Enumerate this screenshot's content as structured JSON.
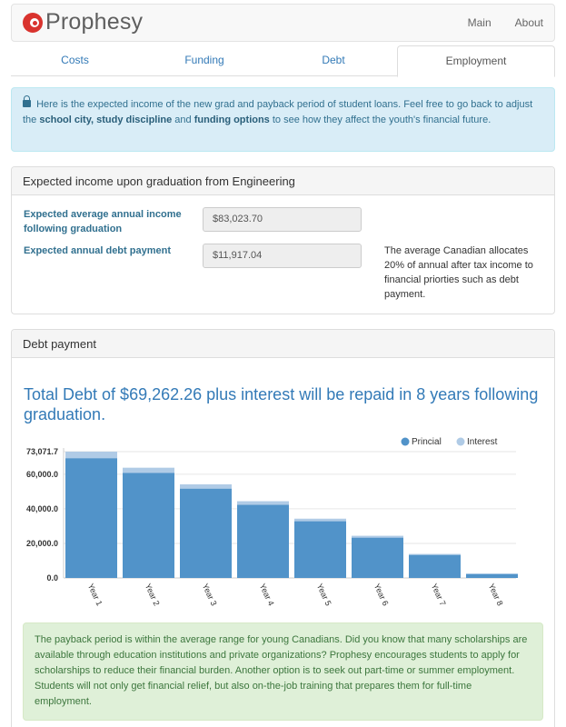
{
  "app": {
    "brand": "Prophesy",
    "nav": [
      "Main",
      "About"
    ]
  },
  "tabs": [
    "Costs",
    "Funding",
    "Debt",
    "Employment"
  ],
  "info": {
    "part1": "Here is the expected income of the new grad and payback period of student loans. Feel free to go back to adjust the ",
    "bold1": "school city, study discipline",
    "part2": " and ",
    "bold2": "funding options",
    "part3": " to see how they affect the youth's financial future."
  },
  "income_panel": {
    "heading": "Expected income upon graduation from Engineering",
    "income_label": "Expected average annual income following graduation",
    "income_value": "$83,023.70",
    "debt_label": "Expected annual debt payment",
    "debt_value": "$11,917.04",
    "aside": "The average Canadian allocates 20% of annual after tax income to financial priorties such as debt payment."
  },
  "debt_panel": {
    "heading": "Debt payment",
    "title": "Total Debt of $69,262.26 plus interest will be repaid in 8 years following graduation.",
    "success": "The payback period is within the average range for young Canadians. Did you know that many scholarships are available through education institutions and private organizations? Prophesy encourages students to apply for scholarships to reduce their financial burden. Another option is to seek out part-time or summer employment. Students will not only get financial relief, but also on-the-job training that prepares them for full-time employment."
  },
  "colors": {
    "principal": "#5193c9",
    "interest": "#b0cbe6",
    "accent": "#337ab7"
  },
  "chart_data": {
    "type": "bar",
    "stacked": true,
    "categories": [
      "Year 1",
      "Year 2",
      "Year 3",
      "Year 4",
      "Year 5",
      "Year 6",
      "Year 7",
      "Year 8"
    ],
    "series": [
      {
        "name": "Princial",
        "values": [
          69262.26,
          60780,
          51660,
          42300,
          32800,
          23300,
          13300,
          2300
        ]
      },
      {
        "name": "Interest",
        "values": [
          3809.44,
          3000,
          2500,
          2100,
          1500,
          1100,
          600,
          200
        ]
      }
    ],
    "y_ticks": [
      "0.0",
      "20,000.0",
      "40,000.0",
      "60,000.0",
      "73,071.7"
    ],
    "y_tick_values": [
      0,
      20000,
      40000,
      60000,
      73071.7
    ],
    "ylim": [
      0,
      73071.7
    ],
    "legend": "top-right",
    "grid": true
  }
}
